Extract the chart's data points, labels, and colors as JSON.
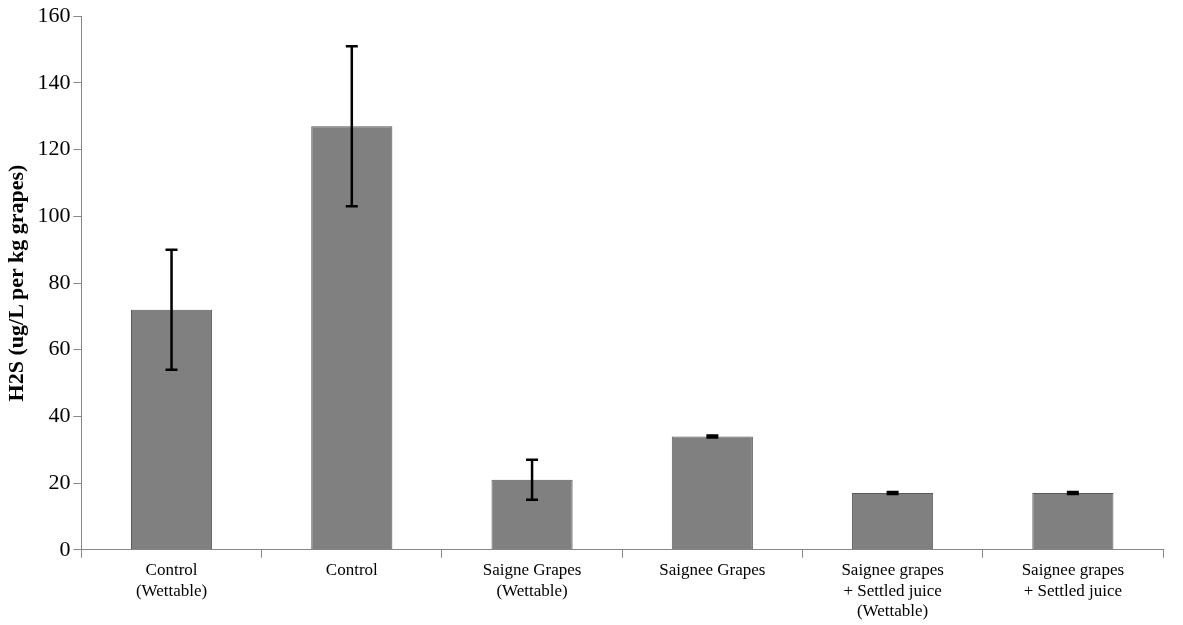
{
  "chart_data": {
    "type": "bar",
    "ylabel": "H2S (ug/L per kg grapes)",
    "categories": [
      "Control\n(Wettable)",
      "Control",
      "Saigne Grapes\n(Wettable)",
      "Saignee Grapes",
      "Saignee grapes\n+ Settled juice\n(Wettable)",
      "Saignee grapes\n+ Settled juice"
    ],
    "values": [
      72,
      127,
      21,
      34,
      17,
      17
    ],
    "errors": [
      18,
      24,
      6,
      0.3,
      0.3,
      0.3
    ],
    "color": "#808080",
    "ylim": [
      0,
      160
    ],
    "yticks": [
      0,
      20,
      40,
      60,
      80,
      100,
      120,
      140,
      160
    ],
    "grid": false,
    "legend": false
  }
}
